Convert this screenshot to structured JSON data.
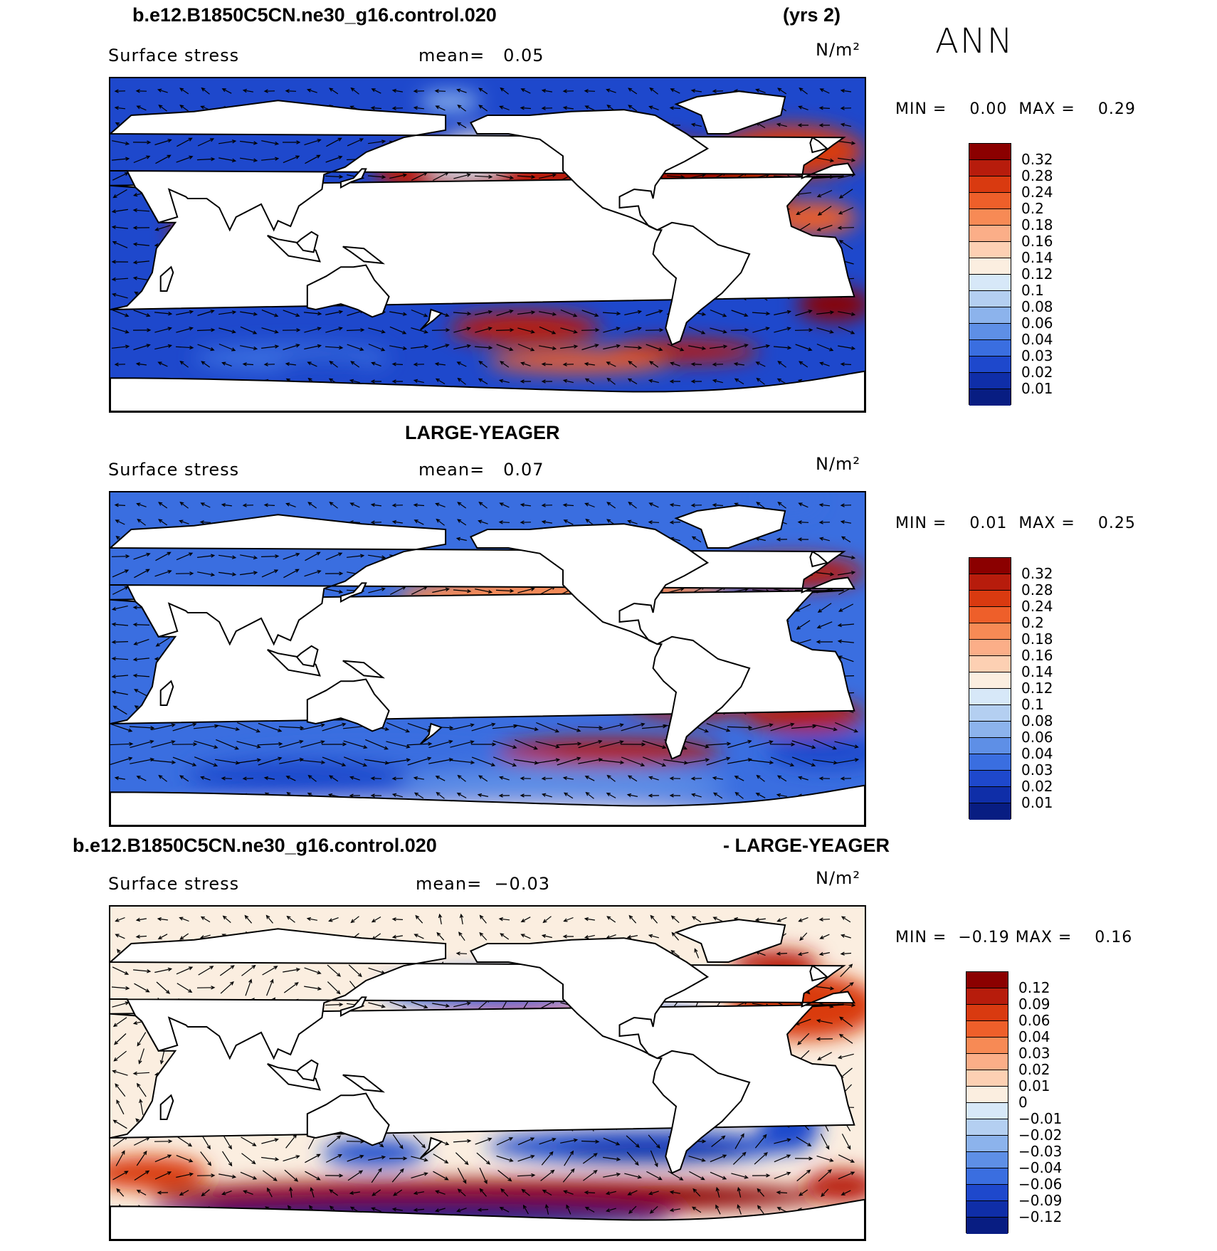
{
  "header": {
    "case_name": "b.e12.B1850C5CN.ne30_g16.control.020",
    "years": "(yrs 2)",
    "season": "ANN"
  },
  "panels": [
    {
      "id": "case",
      "title": "",
      "variable": "Surface stress",
      "mean_label": "mean=",
      "mean_value": "0.05",
      "units": "N/m²",
      "min_label": "MIN =",
      "min_value": "0.00",
      "max_label": "MAX =",
      "max_value": "0.29",
      "colorbar": {
        "labels": [
          "0.32",
          "0.28",
          "0.24",
          "0.2",
          "0.18",
          "0.16",
          "0.14",
          "0.12",
          "0.1",
          "0.08",
          "0.06",
          "0.04",
          "0.03",
          "0.02",
          "0.01"
        ],
        "colors": [
          "#8b0000",
          "#b71c0c",
          "#d93a10",
          "#ee5f2a",
          "#f78a55",
          "#fbae88",
          "#fdd0b3",
          "#fbeee0",
          "#d7e8f8",
          "#b4cff1",
          "#8cb3ec",
          "#5e8fe6",
          "#3a6ee0",
          "#1e48cc",
          "#0f2ea8",
          "#081d82"
        ]
      }
    },
    {
      "id": "obs",
      "title": "LARGE-YEAGER",
      "variable": "Surface stress",
      "mean_label": "mean=",
      "mean_value": "0.07",
      "units": "N/m²",
      "min_label": "MIN =",
      "min_value": "0.01",
      "max_label": "MAX =",
      "max_value": "0.25",
      "colorbar": {
        "labels": [
          "0.32",
          "0.28",
          "0.24",
          "0.2",
          "0.18",
          "0.16",
          "0.14",
          "0.12",
          "0.1",
          "0.08",
          "0.06",
          "0.04",
          "0.03",
          "0.02",
          "0.01"
        ],
        "colors": [
          "#8b0000",
          "#b71c0c",
          "#d93a10",
          "#ee5f2a",
          "#f78a55",
          "#fbae88",
          "#fdd0b3",
          "#fbeee0",
          "#d7e8f8",
          "#b4cff1",
          "#8cb3ec",
          "#5e8fe6",
          "#3a6ee0",
          "#1e48cc",
          "#0f2ea8",
          "#081d82"
        ]
      }
    },
    {
      "id": "diff",
      "title_left": "b.e12.B1850C5CN.ne30_g16.control.020",
      "title_right": "- LARGE-YEAGER",
      "variable": "Surface stress",
      "mean_label": "mean=",
      "mean_value": "−0.03",
      "units": "N/m²",
      "min_label": "MIN =",
      "min_value": "−0.19",
      "max_label": "MAX =",
      "max_value": "0.16",
      "colorbar": {
        "labels": [
          "0.12",
          "0.09",
          "0.06",
          "0.04",
          "0.03",
          "0.02",
          "0.01",
          "0",
          "−0.01",
          "−0.02",
          "−0.03",
          "−0.04",
          "−0.06",
          "−0.09",
          "−0.12"
        ],
        "colors": [
          "#8b0000",
          "#b71c0c",
          "#d93a10",
          "#ee5f2a",
          "#f78a55",
          "#fbae88",
          "#fdd0b3",
          "#fbeee0",
          "#d7e8f8",
          "#b4cff1",
          "#8cb3ec",
          "#5e8fe6",
          "#3a6ee0",
          "#1e48cc",
          "#0f2ea8",
          "#081d82"
        ]
      }
    }
  ]
}
